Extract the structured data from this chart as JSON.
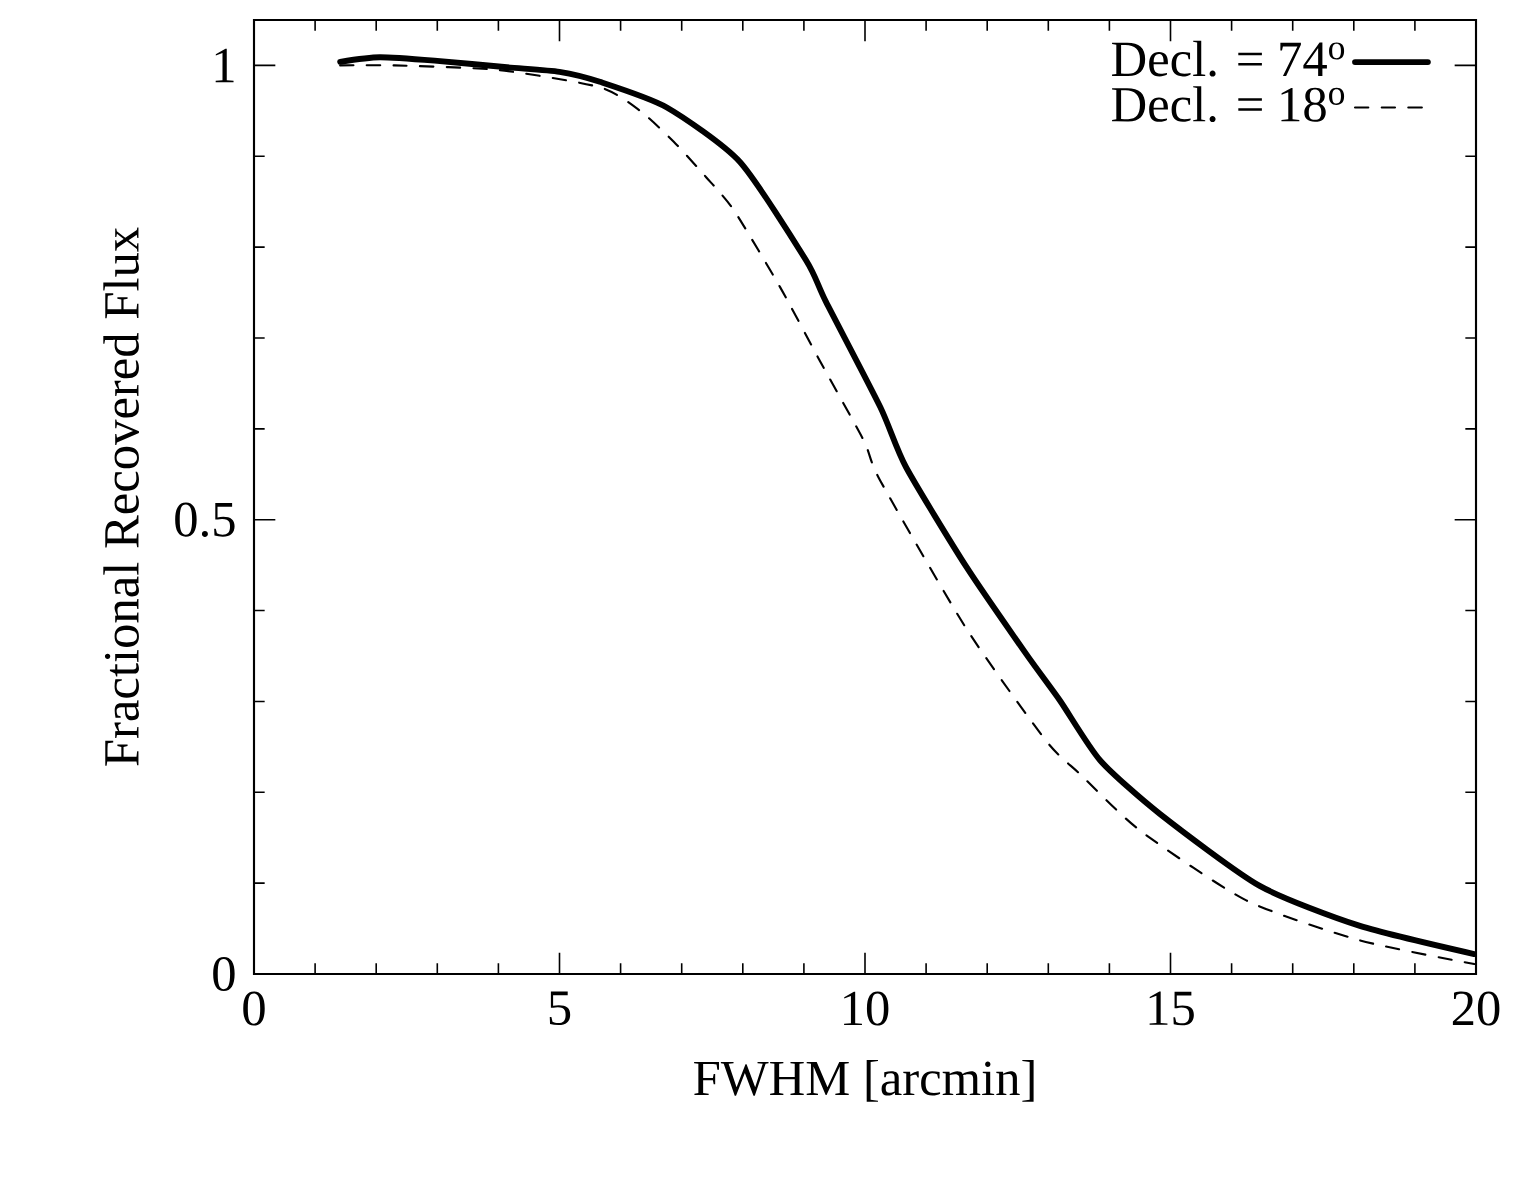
{
  "chart_data": {
    "type": "line",
    "xlabel": "FWHM [arcmin]",
    "ylabel": "Fractional Recovered Flux",
    "xlim": [
      0,
      20
    ],
    "ylim": [
      0,
      1.05
    ],
    "xticks": [
      0,
      5,
      10,
      15,
      20
    ],
    "yticks": [
      0,
      0.5,
      1
    ],
    "legend": "top right",
    "grid": false,
    "marker": "none",
    "series": [
      {
        "name": "Decl. = 74$^{o}$",
        "color": "#000000",
        "line_style": "solid",
        "x": [
          1.41,
          2.06,
          3,
          4.14,
          5,
          5.66,
          6.75,
          7.95,
          9.04,
          9.36,
          10.25,
          10.67,
          11.66,
          12.64,
          13.19,
          13.85,
          14.83,
          16.46,
          18.1,
          19.97
        ],
        "values": [
          1.004,
          1.009,
          1.005,
          0.998,
          0.993,
          0.982,
          0.954,
          0.894,
          0.785,
          0.74,
          0.624,
          0.558,
          0.448,
          0.352,
          0.301,
          0.235,
          0.176,
          0.097,
          0.053,
          0.022
        ]
      },
      {
        "name": "Decl. = 18$^{o}$",
        "color": "#000000",
        "line_style": "dashed",
        "x": [
          1.41,
          2.3,
          4,
          5.66,
          6.32,
          6.87,
          7.4,
          7.86,
          8.61,
          9.26,
          9.98,
          10.25,
          11.66,
          12.96,
          13.52,
          14.5,
          16.24,
          18.1,
          19.97
        ],
        "values": [
          1.0,
          1.0,
          0.995,
          0.976,
          0.95,
          0.916,
          0.877,
          0.84,
          0.756,
          0.675,
          0.587,
          0.543,
          0.38,
          0.257,
          0.22,
          0.158,
          0.081,
          0.037,
          0.011
        ]
      }
    ]
  }
}
